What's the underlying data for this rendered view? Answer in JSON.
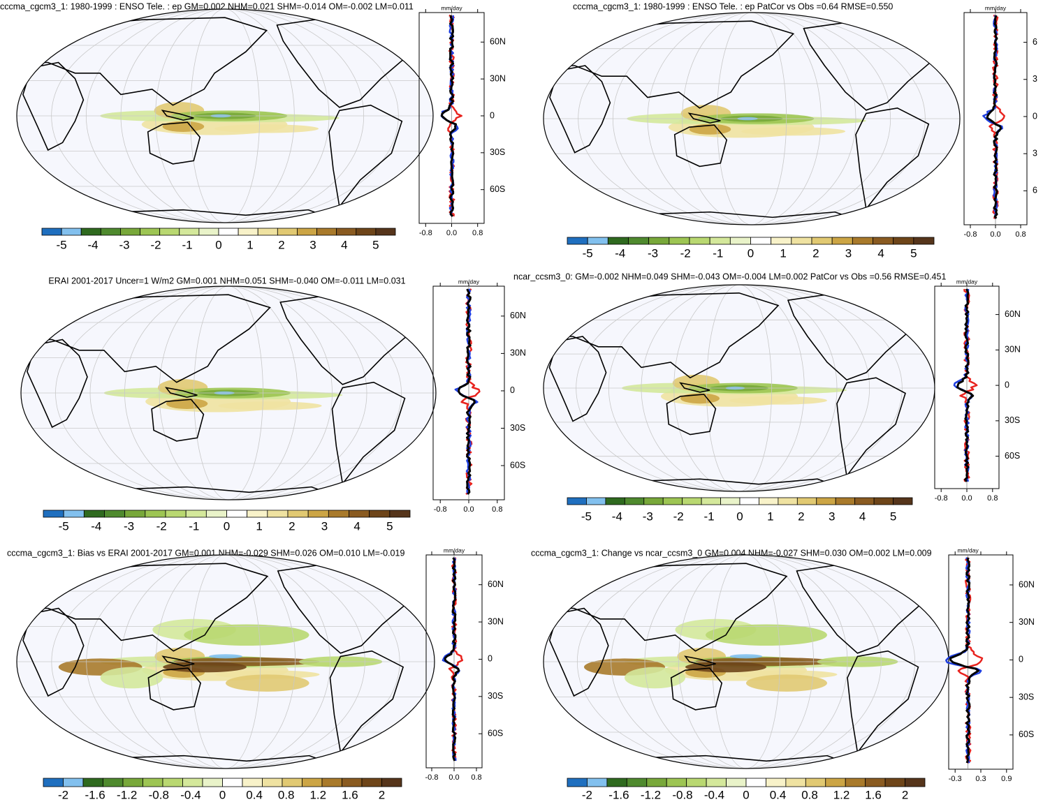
{
  "panels": [
    {
      "title": "cccma_cgcm3_1: 1980-1999 : ENSO Tele. : ep GM=0.002 NHM=0.021 SHM=-0.014 OM=-0.002 LM=0.011",
      "colorbar_labels": [
        "-5",
        "-4",
        "-3",
        "-2",
        "-1",
        "0",
        "1",
        "2",
        "3",
        "4",
        "5"
      ],
      "profile": {
        "unit": "mm/day",
        "x_ticks": [
          "-0.8",
          "0.0",
          "0.8"
        ],
        "lat_labels": [
          "60N",
          "30N",
          "0",
          "30S",
          "60S"
        ]
      }
    },
    {
      "title": "cccma_cgcm3_1: 1980-1999 : ENSO Tele. : ep PatCor vs Obs =0.64 RMSE=0.550",
      "colorbar_labels": [
        "-5",
        "-4",
        "-3",
        "-2",
        "-1",
        "0",
        "1",
        "2",
        "3",
        "4",
        "5"
      ],
      "profile": {
        "unit": "mm/day",
        "x_ticks": [
          "-0.8",
          "0.0",
          "0.8"
        ],
        "lat_labels": [
          "6",
          "3",
          "0",
          "3",
          "6"
        ]
      }
    },
    {
      "title": "ERAI 2001-2017 Uncer=1 W/m2 GM=0.001 NHM=0.051 SHM=-0.040 OM=-0.011 LM=0.031",
      "colorbar_labels": [
        "-5",
        "-4",
        "-3",
        "-2",
        "-1",
        "0",
        "1",
        "2",
        "3",
        "4",
        "5"
      ],
      "profile": {
        "unit": "mm/day",
        "x_ticks": [
          "-0.8",
          "0.0",
          "0.8"
        ],
        "lat_labels": [
          "60N",
          "30N",
          "0",
          "30S",
          "60S"
        ]
      }
    },
    {
      "title": "ncar_ccsm3_0: GM=-0.002 NHM=0.049 SHM=-0.043 OM=-0.004 LM=0.002 PatCor vs Obs =0.56 RMSE=0.451",
      "colorbar_labels": [
        "-5",
        "-4",
        "-3",
        "-2",
        "-1",
        "0",
        "1",
        "2",
        "3",
        "4",
        "5"
      ],
      "profile": {
        "unit": "mm/day",
        "x_ticks": [
          "-0.8",
          "0.0",
          "0.8"
        ],
        "lat_labels": [
          "60N",
          "30N",
          "0",
          "30S",
          "60S"
        ]
      }
    },
    {
      "title": "cccma_cgcm3_1: Bias vs ERAI 2001-2017 GM=0.001 NHM=-0.029 SHM=0.026 OM=0.010 LM=-0.019",
      "colorbar_labels": [
        "-2",
        "-1.6",
        "-1.2",
        "-0.8",
        "-0.4",
        "0",
        "0.4",
        "0.8",
        "1.2",
        "1.6",
        "2"
      ],
      "profile": {
        "unit": "mm/day",
        "x_ticks": [
          "-0.8",
          "0.0",
          "0.8"
        ],
        "lat_labels": [
          "60N",
          "30N",
          "0",
          "30S",
          "60S"
        ]
      }
    },
    {
      "title": "cccma_cgcm3_1: Change vs ncar_ccsm3_0 GM=0.004 NHM=-0.027 SHM=0.030 OM=0.002 LM=0.009",
      "colorbar_labels": [
        "-2",
        "-1.6",
        "-1.2",
        "-0.8",
        "-0.4",
        "0",
        "0.4",
        "0.8",
        "1.2",
        "1.6",
        "2"
      ],
      "profile": {
        "unit": "mm/day",
        "x_ticks": [
          "-0.3",
          "0.3",
          "0.9"
        ],
        "lat_labels": [
          "60N",
          "30N",
          "0",
          "30S",
          "60S"
        ]
      }
    }
  ]
}
